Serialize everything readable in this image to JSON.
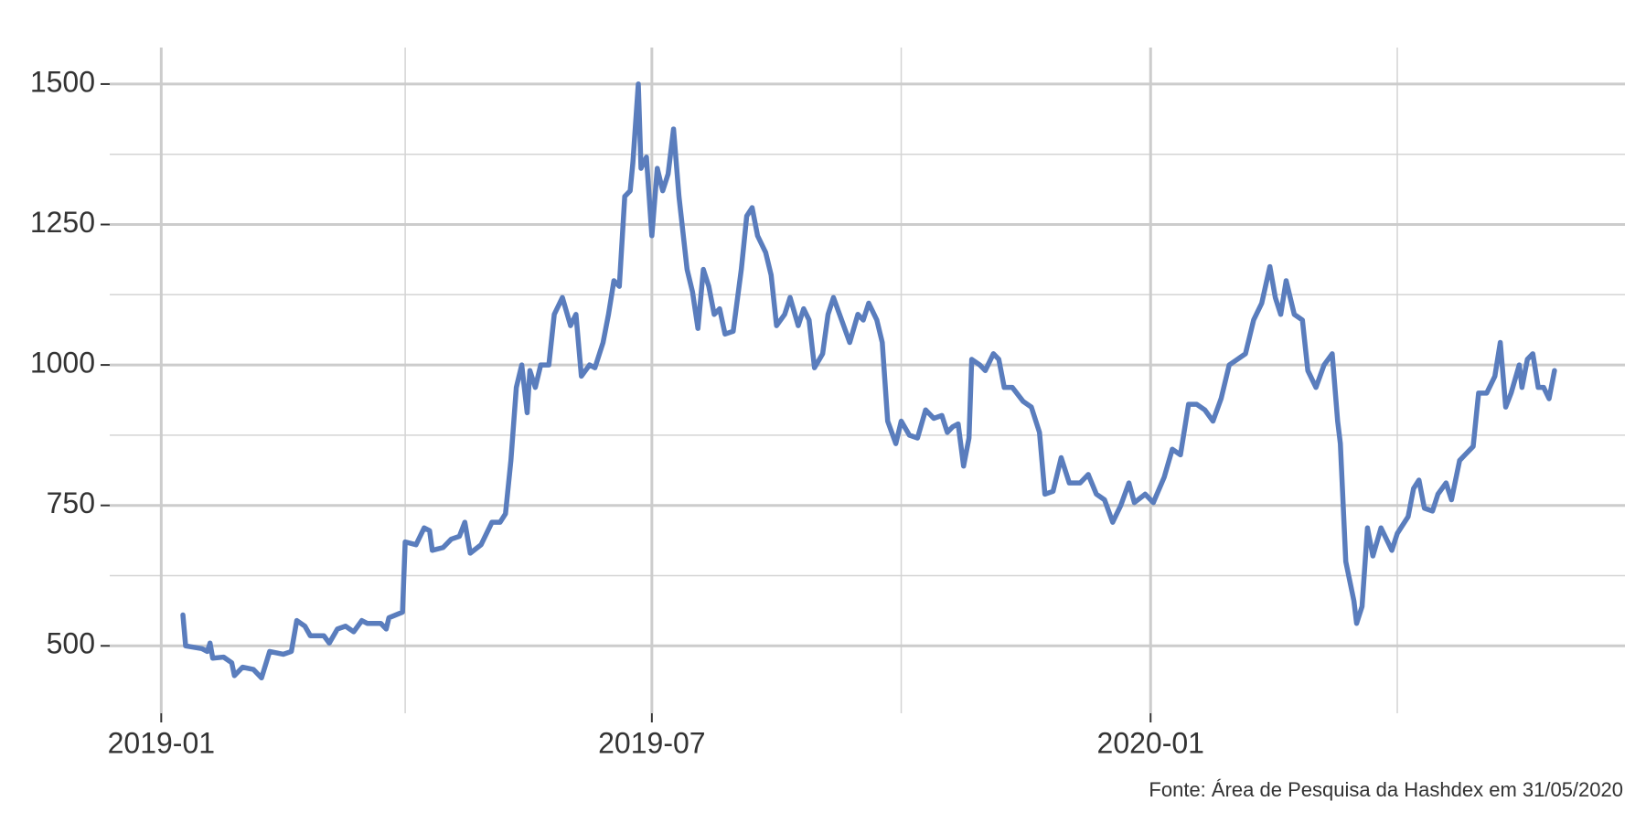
{
  "chart_data": {
    "type": "line",
    "caption": "Fonte: Área de Pesquisa da Hashdex em 31/05/2020",
    "x": [
      "2019-01-09",
      "2019-01-10",
      "2019-01-16",
      "2019-01-18",
      "2019-01-19",
      "2019-01-20",
      "2019-01-24",
      "2019-01-27",
      "2019-01-28",
      "2019-01-31",
      "2019-02-04",
      "2019-02-07",
      "2019-02-10",
      "2019-02-15",
      "2019-02-18",
      "2019-02-20",
      "2019-02-23",
      "2019-02-25",
      "2019-03-02",
      "2019-03-04",
      "2019-03-07",
      "2019-03-10",
      "2019-03-13",
      "2019-03-16",
      "2019-03-18",
      "2019-03-23",
      "2019-03-25",
      "2019-03-26",
      "2019-03-31",
      "2019-04-01",
      "2019-04-05",
      "2019-04-08",
      "2019-04-10",
      "2019-04-11",
      "2019-04-15",
      "2019-04-18",
      "2019-04-21",
      "2019-04-23",
      "2019-04-25",
      "2019-04-29",
      "2019-05-03",
      "2019-05-06",
      "2019-05-08",
      "2019-05-10",
      "2019-05-12",
      "2019-05-14",
      "2019-05-16",
      "2019-05-17",
      "2019-05-19",
      "2019-05-21",
      "2019-05-24",
      "2019-05-26",
      "2019-05-29",
      "2019-06-01",
      "2019-06-03",
      "2019-06-05",
      "2019-06-08",
      "2019-06-10",
      "2019-06-13",
      "2019-06-15",
      "2019-06-17",
      "2019-06-19",
      "2019-06-21",
      "2019-06-23",
      "2019-06-24",
      "2019-06-26",
      "2019-06-27",
      "2019-06-29",
      "2019-07-01",
      "2019-07-03",
      "2019-07-05",
      "2019-07-07",
      "2019-07-09",
      "2019-07-11",
      "2019-07-14",
      "2019-07-16",
      "2019-07-18",
      "2019-07-20",
      "2019-07-22",
      "2019-07-24",
      "2019-07-26",
      "2019-07-28",
      "2019-07-31",
      "2019-08-03",
      "2019-08-05",
      "2019-08-07",
      "2019-08-09",
      "2019-08-12",
      "2019-08-14",
      "2019-08-16",
      "2019-08-19",
      "2019-08-21",
      "2019-08-24",
      "2019-08-26",
      "2019-08-28",
      "2019-08-30",
      "2019-09-02",
      "2019-09-04",
      "2019-09-06",
      "2019-09-09",
      "2019-09-12",
      "2019-09-15",
      "2019-09-17",
      "2019-09-19",
      "2019-09-22",
      "2019-09-24",
      "2019-09-26",
      "2019-09-29",
      "2019-10-01",
      "2019-10-04",
      "2019-10-07",
      "2019-10-10",
      "2019-10-13",
      "2019-10-16",
      "2019-10-18",
      "2019-10-20",
      "2019-10-22",
      "2019-10-24",
      "2019-10-26",
      "2019-10-27",
      "2019-10-30",
      "2019-11-01",
      "2019-11-04",
      "2019-11-06",
      "2019-11-08",
      "2019-11-11",
      "2019-11-15",
      "2019-11-18",
      "2019-11-21",
      "2019-11-23",
      "2019-11-26",
      "2019-11-29",
      "2019-12-02",
      "2019-12-06",
      "2019-12-09",
      "2019-12-12",
      "2019-12-15",
      "2019-12-18",
      "2019-12-21",
      "2019-12-24",
      "2019-12-26",
      "2019-12-30",
      "2020-01-02",
      "2020-01-06",
      "2020-01-09",
      "2020-01-12",
      "2020-01-15",
      "2020-01-18",
      "2020-01-21",
      "2020-01-24",
      "2020-01-27",
      "2020-01-30",
      "2020-02-02",
      "2020-02-05",
      "2020-02-08",
      "2020-02-11",
      "2020-02-14",
      "2020-02-16",
      "2020-02-18",
      "2020-02-20",
      "2020-02-23",
      "2020-02-26",
      "2020-02-28",
      "2020-03-02",
      "2020-03-05",
      "2020-03-08",
      "2020-03-10",
      "2020-03-11",
      "2020-03-13",
      "2020-03-16",
      "2020-03-17",
      "2020-03-19",
      "2020-03-21",
      "2020-03-23",
      "2020-03-26",
      "2020-03-28",
      "2020-03-30",
      "2020-04-01",
      "2020-04-05",
      "2020-04-07",
      "2020-04-09",
      "2020-04-11",
      "2020-04-14",
      "2020-04-16",
      "2020-04-19",
      "2020-04-21",
      "2020-04-24",
      "2020-04-26",
      "2020-04-29",
      "2020-05-01",
      "2020-05-04",
      "2020-05-07",
      "2020-05-09",
      "2020-05-11",
      "2020-05-13",
      "2020-05-16",
      "2020-05-17",
      "2020-05-19",
      "2020-05-21",
      "2020-05-23",
      "2020-05-25",
      "2020-05-27",
      "2020-05-29"
    ],
    "series": [
      {
        "color": "#5a7dbd",
        "values": [
          555,
          500,
          495,
          490,
          505,
          478,
          480,
          470,
          447,
          462,
          458,
          443,
          490,
          485,
          490,
          545,
          535,
          518,
          518,
          505,
          530,
          535,
          525,
          545,
          540,
          540,
          530,
          550,
          560,
          685,
          680,
          710,
          705,
          670,
          675,
          690,
          695,
          720,
          665,
          680,
          720,
          720,
          735,
          830,
          960,
          1000,
          915,
          990,
          960,
          1000,
          1000,
          1090,
          1120,
          1070,
          1090,
          980,
          1000,
          995,
          1040,
          1090,
          1150,
          1140,
          1300,
          1310,
          1360,
          1500,
          1350,
          1370,
          1230,
          1350,
          1310,
          1340,
          1420,
          1300,
          1170,
          1130,
          1065,
          1170,
          1140,
          1090,
          1100,
          1055,
          1060,
          1170,
          1265,
          1280,
          1230,
          1200,
          1160,
          1070,
          1090,
          1120,
          1070,
          1100,
          1080,
          995,
          1020,
          1090,
          1120,
          1080,
          1040,
          1090,
          1080,
          1110,
          1080,
          1040,
          900,
          860,
          900,
          875,
          870,
          920,
          905,
          910,
          880,
          890,
          895,
          820,
          870,
          1010,
          1000,
          990,
          1020,
          1010,
          960,
          960,
          935,
          925,
          880,
          770,
          775,
          835,
          790,
          790,
          805,
          770,
          760,
          720,
          750,
          790,
          755,
          770,
          755,
          800,
          850,
          840,
          930,
          930,
          920,
          900,
          940,
          1000,
          1010,
          1020,
          1080,
          1110,
          1175,
          1120,
          1090,
          1150,
          1090,
          1080,
          990,
          960,
          1000,
          1020,
          900,
          860,
          650,
          580,
          540,
          570,
          710,
          660,
          710,
          690,
          670,
          700,
          730,
          780,
          795,
          745,
          740,
          770,
          790,
          760,
          830,
          840,
          855,
          950,
          950,
          980,
          1040,
          925,
          950,
          1000,
          960,
          1010,
          1020,
          960,
          960,
          940,
          990
        ]
      }
    ],
    "xlim": [
      "2018-12-13",
      "2020-06-24"
    ],
    "xticks": [
      {
        "value": "2019-01-01",
        "label": "2019-01"
      },
      {
        "value": "2019-07-01",
        "label": "2019-07"
      },
      {
        "value": "2020-01-01",
        "label": "2020-01"
      }
    ],
    "x_minor_ticks": [
      "2019-04-01",
      "2019-10-01",
      "2020-04-01"
    ],
    "ylim": [
      380,
      1565
    ],
    "yticks": [
      500,
      750,
      1000,
      1250,
      1500
    ],
    "y_minor_ticks": [
      625,
      875,
      1125,
      1375
    ],
    "grid": true
  }
}
